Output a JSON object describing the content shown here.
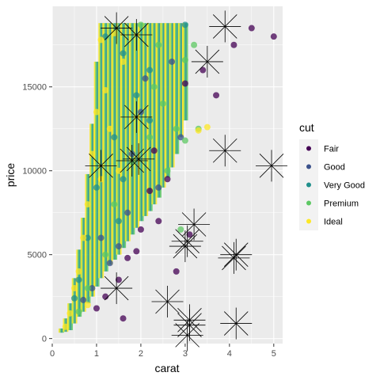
{
  "chart_data": {
    "type": "scatter",
    "xlabel": "carat",
    "ylabel": "price",
    "xlim": [
      0,
      5.2
    ],
    "ylim": [
      -300,
      19800
    ],
    "x_ticks": [
      0,
      1,
      2,
      3,
      4,
      5
    ],
    "y_ticks": [
      0,
      5000,
      10000,
      15000
    ],
    "y_tick_labels": [
      "0",
      "5000",
      "10000",
      "15000"
    ],
    "grid": true,
    "panel_background": "#ebebeb",
    "legend": {
      "title": "cut",
      "placement": "right",
      "entries": [
        {
          "label": "Fair",
          "color": "#440154"
        },
        {
          "label": "Good",
          "color": "#3b528b"
        },
        {
          "label": "Very Good",
          "color": "#21908c"
        },
        {
          "label": "Premium",
          "color": "#5dc863"
        },
        {
          "label": "Ideal",
          "color": "#fde725"
        }
      ]
    },
    "series": [
      {
        "name": "Fair",
        "color": "#440154",
        "points": [
          [
            4.5,
            18500
          ],
          [
            5.0,
            18000
          ],
          [
            4.1,
            17500
          ],
          [
            3.4,
            16000
          ],
          [
            3.0,
            15200
          ],
          [
            2.3,
            11200
          ],
          [
            2.6,
            9500
          ],
          [
            2.2,
            8800
          ],
          [
            2.0,
            6500
          ],
          [
            2.4,
            7000
          ],
          [
            1.7,
            4800
          ],
          [
            1.9,
            5200
          ],
          [
            2.8,
            4000
          ],
          [
            3.1,
            6200
          ],
          [
            1.5,
            3500
          ],
          [
            1.2,
            2500
          ],
          [
            1.0,
            1800
          ],
          [
            1.6,
            1200
          ],
          [
            3.7,
            14500
          ]
        ]
      },
      {
        "name": "Good",
        "color": "#3b528b",
        "points": [
          [
            2.1,
            15500
          ],
          [
            1.8,
            11000
          ],
          [
            2.4,
            9000
          ],
          [
            1.7,
            7500
          ],
          [
            1.5,
            5500
          ],
          [
            1.3,
            4500
          ],
          [
            2.0,
            13500
          ],
          [
            1.1,
            6000
          ],
          [
            0.9,
            3000
          ],
          [
            0.7,
            2300
          ],
          [
            2.9,
            12000
          ],
          [
            2.7,
            16500
          ]
        ]
      },
      {
        "name": "Very Good",
        "color": "#21908c",
        "points": [
          [
            1.2,
            18000
          ],
          [
            1.6,
            17000
          ],
          [
            2.2,
            16000
          ],
          [
            1.9,
            14500
          ],
          [
            1.4,
            12000
          ],
          [
            1.0,
            9000
          ],
          [
            0.8,
            6000
          ],
          [
            1.6,
            9500
          ],
          [
            0.5,
            2400
          ],
          [
            3.0,
            18700
          ],
          [
            2.2,
            13000
          ],
          [
            0.6,
            3500
          ],
          [
            1.5,
            7000
          ]
        ]
      },
      {
        "name": "Premium",
        "color": "#5dc863",
        "points": [
          [
            2.0,
            18700
          ],
          [
            2.4,
            17500
          ],
          [
            3.0,
            16600
          ],
          [
            2.5,
            14000
          ],
          [
            2.8,
            12500
          ],
          [
            3.0,
            11800
          ],
          [
            2.2,
            12000
          ],
          [
            1.8,
            10500
          ],
          [
            2.6,
            10000
          ],
          [
            1.4,
            8000
          ],
          [
            2.9,
            6500
          ],
          [
            1.2,
            5000
          ],
          [
            0.8,
            3000
          ],
          [
            0.6,
            1600
          ],
          [
            3.2,
            17500
          ],
          [
            2.3,
            15000
          ],
          [
            3.3,
            12500
          ]
        ]
      },
      {
        "name": "Ideal",
        "color": "#fde725",
        "points": [
          [
            1.4,
            18200
          ],
          [
            1.1,
            17800
          ],
          [
            1.6,
            16500
          ],
          [
            1.0,
            13500
          ],
          [
            1.2,
            14800
          ],
          [
            0.9,
            11000
          ],
          [
            1.5,
            10000
          ],
          [
            0.8,
            8000
          ],
          [
            0.7,
            6000
          ],
          [
            0.6,
            4000
          ],
          [
            0.5,
            3000
          ],
          [
            0.4,
            1500
          ],
          [
            0.3,
            700
          ],
          [
            1.3,
            12500
          ],
          [
            1.1,
            9500
          ],
          [
            3.5,
            12600
          ],
          [
            3.3,
            12400
          ],
          [
            0.8,
            2000
          ]
        ]
      }
    ],
    "range_bands": [
      {
        "carat": 0.2,
        "low": 350,
        "high": 600
      },
      {
        "carat": 0.3,
        "low": 400,
        "high": 1200
      },
      {
        "carat": 0.4,
        "low": 500,
        "high": 2100
      },
      {
        "carat": 0.5,
        "low": 900,
        "high": 3600
      },
      {
        "carat": 0.6,
        "low": 1300,
        "high": 5300
      },
      {
        "carat": 0.7,
        "low": 1600,
        "high": 7200
      },
      {
        "carat": 0.8,
        "low": 2100,
        "high": 9800
      },
      {
        "carat": 0.9,
        "low": 2500,
        "high": 12800
      },
      {
        "carat": 1.0,
        "low": 3100,
        "high": 16500
      },
      {
        "carat": 1.1,
        "low": 3600,
        "high": 18800
      },
      {
        "carat": 1.2,
        "low": 4000,
        "high": 18800
      },
      {
        "carat": 1.3,
        "low": 4400,
        "high": 18800
      },
      {
        "carat": 1.4,
        "low": 4700,
        "high": 18800
      },
      {
        "carat": 1.5,
        "low": 5000,
        "high": 18800
      },
      {
        "carat": 1.6,
        "low": 5400,
        "high": 18800
      },
      {
        "carat": 1.7,
        "low": 5800,
        "high": 18800
      },
      {
        "carat": 1.8,
        "low": 6200,
        "high": 18800
      },
      {
        "carat": 1.9,
        "low": 6600,
        "high": 18800
      },
      {
        "carat": 2.0,
        "low": 7000,
        "high": 18800
      },
      {
        "carat": 2.1,
        "low": 7300,
        "high": 18800
      },
      {
        "carat": 2.2,
        "low": 7600,
        "high": 18800
      },
      {
        "carat": 2.3,
        "low": 8000,
        "high": 18800
      },
      {
        "carat": 2.4,
        "low": 8400,
        "high": 18800
      },
      {
        "carat": 2.5,
        "low": 9000,
        "high": 18800
      },
      {
        "carat": 2.6,
        "low": 9600,
        "high": 18800
      },
      {
        "carat": 2.7,
        "low": 10200,
        "high": 18800
      },
      {
        "carat": 2.8,
        "low": 11000,
        "high": 18800
      },
      {
        "carat": 2.9,
        "low": 12000,
        "high": 18800
      },
      {
        "carat": 3.0,
        "low": 13000,
        "high": 18800
      }
    ],
    "star_markers": [
      {
        "carat": 1.45,
        "price": 18500
      },
      {
        "carat": 1.9,
        "price": 18100
      },
      {
        "carat": 3.9,
        "price": 18600
      },
      {
        "carat": 3.5,
        "price": 16500
      },
      {
        "carat": 1.9,
        "price": 13200
      },
      {
        "carat": 1.1,
        "price": 10300
      },
      {
        "carat": 1.8,
        "price": 10600
      },
      {
        "carat": 1.95,
        "price": 10700
      },
      {
        "carat": 3.9,
        "price": 11200
      },
      {
        "carat": 4.95,
        "price": 10300
      },
      {
        "carat": 3.2,
        "price": 6800
      },
      {
        "carat": 3.05,
        "price": 5800
      },
      {
        "carat": 3.0,
        "price": 5500
      },
      {
        "carat": 4.15,
        "price": 5000
      },
      {
        "carat": 4.1,
        "price": 4800
      },
      {
        "carat": 1.45,
        "price": 3000
      },
      {
        "carat": 2.6,
        "price": 2200
      },
      {
        "carat": 3.1,
        "price": 1100
      },
      {
        "carat": 3.1,
        "price": 800
      },
      {
        "carat": 3.05,
        "price": 200
      },
      {
        "carat": 4.15,
        "price": 900
      }
    ]
  }
}
